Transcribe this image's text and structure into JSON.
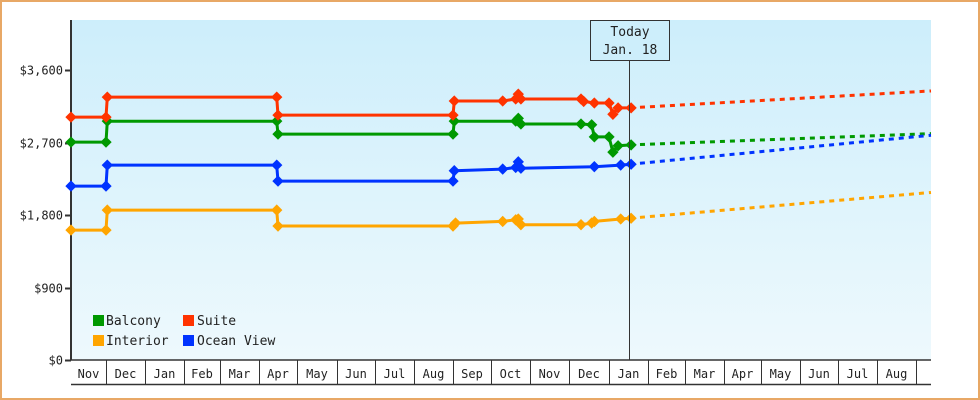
{
  "chart_data": {
    "type": "line",
    "title": "",
    "xlabel": "",
    "ylabel": "",
    "ylim": [
      0,
      4250
    ],
    "grid": false,
    "legend_position": "lower-left inside",
    "y_ticks": [
      {
        "value": 0,
        "label": "$0"
      },
      {
        "value": 900,
        "label": "$900"
      },
      {
        "value": 1800,
        "label": "$1,800"
      },
      {
        "value": 2700,
        "label": "$2,700"
      },
      {
        "value": 3600,
        "label": "$3,600"
      }
    ],
    "x_ticks": [
      "Nov",
      "Dec",
      "Jan",
      "Feb",
      "Mar",
      "Apr",
      "May",
      "Jun",
      "Jul",
      "Aug",
      "Sep",
      "Oct",
      "Nov",
      "Dec",
      "Jan",
      "Feb",
      "Mar",
      "Apr",
      "May",
      "Jun",
      "Jul",
      "Aug"
    ],
    "annotation": {
      "line1": "Today",
      "line2": "Jan. 18"
    },
    "series": [
      {
        "name": "Balcony",
        "color": "#009900",
        "points": [
          [
            "Nov 1",
            2705
          ],
          [
            "Dec 1",
            2705
          ],
          [
            "Dec 2",
            2965
          ],
          [
            "Apr 15",
            2965
          ],
          [
            "Apr 16",
            2804
          ],
          [
            "Sep 1",
            2804
          ],
          [
            "Sep 2",
            2965
          ],
          [
            "Oct 20",
            2965
          ],
          [
            "Oct 22",
            3000
          ],
          [
            "Oct 24",
            2930
          ],
          [
            "Dec 10",
            2930
          ],
          [
            "Dec 18",
            2920
          ],
          [
            "Dec 20",
            2770
          ],
          [
            "Jan 1",
            2770
          ],
          [
            "Jan 4",
            2580
          ],
          [
            "Jan 8",
            2660
          ],
          [
            "Jan 18",
            2670
          ]
        ],
        "forecast": [
          [
            "Jan 18",
            2670
          ],
          [
            "Aug 31",
            2810
          ]
        ]
      },
      {
        "name": "Suite",
        "color": "#ff3300",
        "points": [
          [
            "Nov 1",
            3015
          ],
          [
            "Dec 1",
            3015
          ],
          [
            "Dec 2",
            3263
          ],
          [
            "Apr 15",
            3263
          ],
          [
            "Apr 16",
            3040
          ],
          [
            "Sep 1",
            3040
          ],
          [
            "Sep 2",
            3215
          ],
          [
            "Oct 10",
            3215
          ],
          [
            "Oct 20",
            3240
          ],
          [
            "Oct 22",
            3300
          ],
          [
            "Oct 24",
            3240
          ],
          [
            "Dec 10",
            3240
          ],
          [
            "Dec 12",
            3210
          ],
          [
            "Dec 20",
            3190
          ],
          [
            "Jan 1",
            3190
          ],
          [
            "Jan 4",
            3050
          ],
          [
            "Jan 8",
            3130
          ],
          [
            "Jan 18",
            3130
          ]
        ],
        "forecast": [
          [
            "Jan 18",
            3130
          ],
          [
            "Aug 31",
            3340
          ]
        ]
      },
      {
        "name": "Interior",
        "color": "#ffa500",
        "points": [
          [
            "Nov 1",
            1613
          ],
          [
            "Dec 1",
            1613
          ],
          [
            "Dec 2",
            1861
          ],
          [
            "Apr 15",
            1861
          ],
          [
            "Apr 16",
            1663
          ],
          [
            "Sep 1",
            1663
          ],
          [
            "Sep 3",
            1700
          ],
          [
            "Oct 10",
            1720
          ],
          [
            "Oct 20",
            1740
          ],
          [
            "Oct 22",
            1750
          ],
          [
            "Oct 24",
            1680
          ],
          [
            "Dec 10",
            1680
          ],
          [
            "Dec 18",
            1700
          ],
          [
            "Dec 20",
            1720
          ],
          [
            "Jan 10",
            1750
          ],
          [
            "Jan 18",
            1760
          ]
        ],
        "forecast": [
          [
            "Jan 18",
            1760
          ],
          [
            "Aug 31",
            2080
          ]
        ]
      },
      {
        "name": "Ocean View",
        "color": "#0033ff",
        "points": [
          [
            "Nov 1",
            2159
          ],
          [
            "Dec 1",
            2159
          ],
          [
            "Dec 2",
            2419
          ],
          [
            "Apr 15",
            2419
          ],
          [
            "Apr 16",
            2221
          ],
          [
            "Sep 1",
            2221
          ],
          [
            "Sep 2",
            2350
          ],
          [
            "Oct 10",
            2370
          ],
          [
            "Oct 20",
            2390
          ],
          [
            "Oct 22",
            2460
          ],
          [
            "Oct 24",
            2380
          ],
          [
            "Dec 20",
            2400
          ],
          [
            "Jan 10",
            2420
          ],
          [
            "Jan 18",
            2430
          ]
        ],
        "forecast": [
          [
            "Jan 18",
            2430
          ],
          [
            "Aug 31",
            2790
          ]
        ]
      }
    ]
  },
  "legend": [
    {
      "label": "Balcony",
      "color": "#009900"
    },
    {
      "label": "Suite",
      "color": "#ff3300"
    },
    {
      "label": "Interior",
      "color": "#ffa500"
    },
    {
      "label": "Ocean View",
      "color": "#0033ff"
    }
  ]
}
